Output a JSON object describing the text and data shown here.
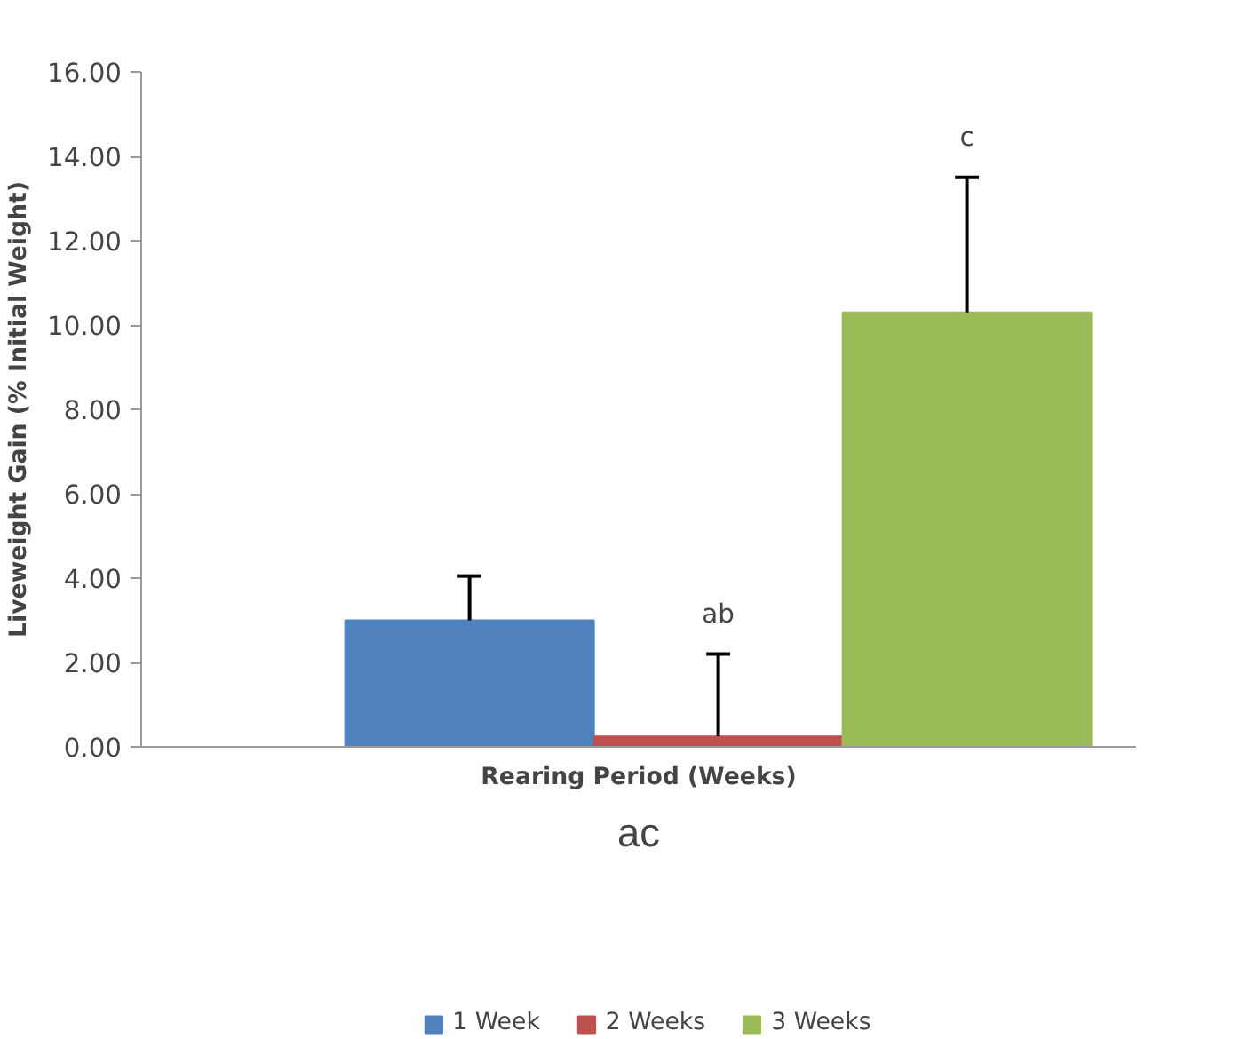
{
  "chart_data": {
    "type": "bar",
    "ylabel": "Liveweight Gain (% Initial Weight)",
    "xlabel": "Rearing Period (Weeks)",
    "categories": [
      null
    ],
    "series": [
      {
        "name": "1 Week",
        "color": "#4f81bd",
        "values": [
          3.0
        ],
        "errors": [
          [
            3.0,
            4.05
          ]
        ]
      },
      {
        "name": "2 Weeks",
        "color": "#c0504d",
        "values": [
          0.25
        ],
        "errors": [
          [
            0.25,
            2.2
          ]
        ]
      },
      {
        "name": "3 Weeks",
        "color": "#9bbb59",
        "values": [
          10.3
        ],
        "errors": [
          [
            10.3,
            13.5
          ]
        ]
      }
    ],
    "ylim": [
      0,
      16
    ],
    "yticks": [
      {
        "value": 0,
        "label": "0.00"
      },
      {
        "value": 2,
        "label": "2.00"
      },
      {
        "value": 4,
        "label": "4.00"
      },
      {
        "value": 6,
        "label": "6.00"
      },
      {
        "value": 8,
        "label": "8.00"
      },
      {
        "value": 10,
        "label": "10.00"
      },
      {
        "value": 12,
        "label": "12.00"
      },
      {
        "value": 14,
        "label": "14.00"
      },
      {
        "value": 16,
        "label": "16.00"
      }
    ],
    "annotations": [
      "ac",
      "ab",
      "c"
    ],
    "grid": false,
    "legend": "bottom"
  }
}
